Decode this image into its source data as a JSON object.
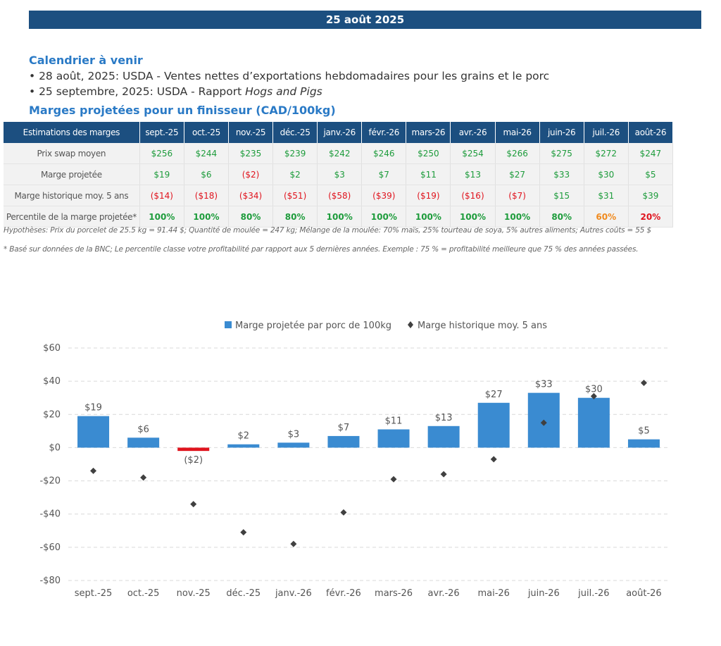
{
  "banner": "25 août 2025",
  "calendar": {
    "title": "Calendrier à venir",
    "items": [
      {
        "prefix": "• 28 août, 2025: USDA - Ventes nettes d’exportations hebdomadaires pour les grains et le porc",
        "italic": ""
      },
      {
        "prefix": "• 25 septembre, 2025: USDA - Rapport ",
        "italic": "Hogs and Pigs"
      }
    ]
  },
  "margins_title": "Marges projetées pour un finisseur (CAD/100kg)",
  "table": {
    "header_label": "Estimations des marges",
    "months": [
      "sept.-25",
      "oct.-25",
      "nov.-25",
      "déc.-25",
      "janv.-26",
      "févr.-26",
      "mars-26",
      "avr.-26",
      "mai-26",
      "juin-26",
      "juil.-26",
      "août-26"
    ],
    "rows": [
      {
        "label": "Prix swap moyen",
        "cells": [
          "$256",
          "$244",
          "$235",
          "$239",
          "$242",
          "$246",
          "$250",
          "$254",
          "$266",
          "$275",
          "$272",
          "$247"
        ]
      },
      {
        "label": "Marge projetée",
        "cells": [
          "$19",
          "$6",
          "($2)",
          "$2",
          "$3",
          "$7",
          "$11",
          "$13",
          "$27",
          "$33",
          "$30",
          "$5"
        ]
      },
      {
        "label": "Marge historique moy. 5 ans",
        "cells": [
          "($14)",
          "($18)",
          "($34)",
          "($51)",
          "($58)",
          "($39)",
          "($19)",
          "($16)",
          "($7)",
          "$15",
          "$31",
          "$39"
        ]
      },
      {
        "label": "Percentile de la marge projetée*",
        "cells": [
          "100%",
          "100%",
          "80%",
          "80%",
          "100%",
          "100%",
          "100%",
          "100%",
          "100%",
          "80%",
          "60%",
          "20%"
        ]
      }
    ]
  },
  "footnotes": {
    "hypotheses": "Hypothèses: Prix du porcelet de 25.5 kg = 91.44 $; Quantité de moulée = 247 kg; Mélange de la moulée: 70% maïs, 25% tourteau de soya, 5% autres aliments; Autres coûts = 55 $",
    "note": "* Basé sur données de la BNC; Le percentile classe votre profitabilité par rapport aux 5 dernières années. Exemple : 75 % = profitabilité meilleure que 75 % des années passées."
  },
  "colors": {
    "banner": "#1c4f80",
    "bar": "#3a8bd1",
    "bar_negative": "#e0141e",
    "marker": "#404040",
    "positive_text": "#1e9c3c",
    "negative_text": "#e0141e",
    "orange_text": "#f08a1e"
  },
  "chart_data": {
    "type": "bar",
    "categories": [
      "sept.-25",
      "oct.-25",
      "nov.-25",
      "déc.-25",
      "janv.-26",
      "févr.-26",
      "mars-26",
      "avr.-26",
      "mai-26",
      "juin-26",
      "juil.-26",
      "août-26"
    ],
    "series": [
      {
        "name": "Marge projetée par porc de 100kg",
        "type": "bar",
        "values": [
          19,
          6,
          -2,
          2,
          3,
          7,
          11,
          13,
          27,
          33,
          30,
          5
        ]
      },
      {
        "name": "Marge historique moy. 5 ans",
        "type": "scatter",
        "marker": "diamond",
        "values": [
          -14,
          -18,
          -34,
          -51,
          -58,
          -39,
          -19,
          -16,
          -7,
          15,
          31,
          39
        ]
      }
    ],
    "data_labels": [
      "$19",
      "$6",
      "($2)",
      "$2",
      "$3",
      "$7",
      "$11",
      "$13",
      "$27",
      "$33",
      "$30",
      "$5"
    ],
    "ylim": [
      -80,
      60
    ],
    "yticks": [
      60,
      40,
      20,
      0,
      -20,
      -40,
      -60,
      -80
    ],
    "ytick_labels": [
      "$60",
      "$40",
      "$20",
      "$0",
      "-$20",
      "-$40",
      "-$60",
      "-$80"
    ],
    "grid": "horizontal dashed",
    "legend": "top-center"
  }
}
